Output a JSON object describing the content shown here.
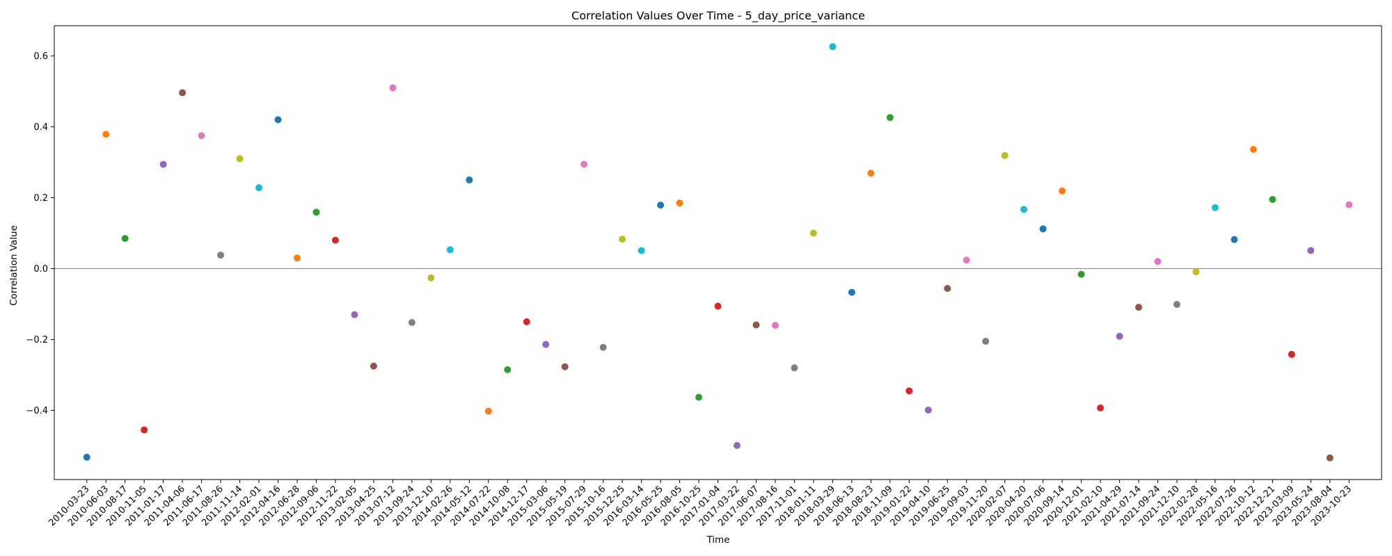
{
  "chart_data": {
    "type": "scatter",
    "title": "Correlation Values Over Time - 5_day_price_variance",
    "xlabel": "Time",
    "ylabel": "Correlation Value",
    "ylim": [
      -0.595,
      0.685
    ],
    "yticks": [
      -0.4,
      -0.2,
      0.0,
      0.2,
      0.4,
      0.6
    ],
    "ytick_labels": [
      "−0.4",
      "−0.2",
      "0.0",
      "0.2",
      "0.4",
      "0.6"
    ],
    "zero_line": 0.0,
    "grid": false,
    "legend": "none",
    "palette": [
      "#1f77b4",
      "#ff7f0e",
      "#2ca02c",
      "#d62728",
      "#9467bd",
      "#8c564b",
      "#e377c2",
      "#7f7f7f",
      "#bcbd22",
      "#17becf"
    ],
    "x": [
      "2010-03-23",
      "2010-06-03",
      "2010-08-17",
      "2010-11-05",
      "2011-01-17",
      "2011-04-06",
      "2011-06-17",
      "2011-08-26",
      "2011-11-14",
      "2012-02-01",
      "2012-04-16",
      "2012-06-28",
      "2012-09-06",
      "2012-11-22",
      "2013-02-05",
      "2013-04-25",
      "2013-07-12",
      "2013-09-24",
      "2013-12-10",
      "2014-02-26",
      "2014-05-12",
      "2014-07-22",
      "2014-10-08",
      "2014-12-17",
      "2015-03-06",
      "2015-05-19",
      "2015-07-29",
      "2015-10-16",
      "2015-12-25",
      "2016-03-14",
      "2016-05-25",
      "2016-08-05",
      "2016-10-25",
      "2017-01-04",
      "2017-03-22",
      "2017-06-07",
      "2017-08-16",
      "2017-11-01",
      "2018-01-11",
      "2018-03-29",
      "2018-06-13",
      "2018-08-23",
      "2018-11-09",
      "2019-01-22",
      "2019-04-10",
      "2019-06-25",
      "2019-09-03",
      "2019-11-20",
      "2020-02-07",
      "2020-04-20",
      "2020-07-06",
      "2020-09-14",
      "2020-12-01",
      "2021-02-10",
      "2021-04-29",
      "2021-07-14",
      "2021-09-24",
      "2021-12-10",
      "2022-02-28",
      "2022-05-16",
      "2022-07-26",
      "2022-10-12",
      "2022-12-21",
      "2023-03-09",
      "2023-05-24",
      "2023-08-04",
      "2023-10-23"
    ],
    "y": [
      -0.532,
      0.379,
      0.085,
      -0.455,
      0.294,
      0.496,
      0.375,
      0.038,
      0.31,
      0.228,
      0.42,
      0.03,
      0.159,
      0.08,
      -0.13,
      -0.275,
      0.51,
      -0.152,
      -0.026,
      0.053,
      0.25,
      -0.402,
      -0.285,
      -0.15,
      -0.214,
      -0.277,
      0.294,
      -0.222,
      0.083,
      0.051,
      0.179,
      0.185,
      -0.363,
      -0.106,
      -0.499,
      -0.159,
      -0.16,
      -0.28,
      0.1,
      0.626,
      -0.067,
      0.269,
      0.426,
      -0.345,
      -0.399,
      -0.056,
      0.024,
      -0.205,
      0.319,
      0.167,
      0.112,
      0.219,
      -0.016,
      -0.393,
      -0.191,
      -0.109,
      0.02,
      -0.101,
      -0.009,
      0.172,
      0.082,
      0.336,
      0.195,
      -0.242,
      0.051,
      -0.534,
      0.18
    ]
  }
}
